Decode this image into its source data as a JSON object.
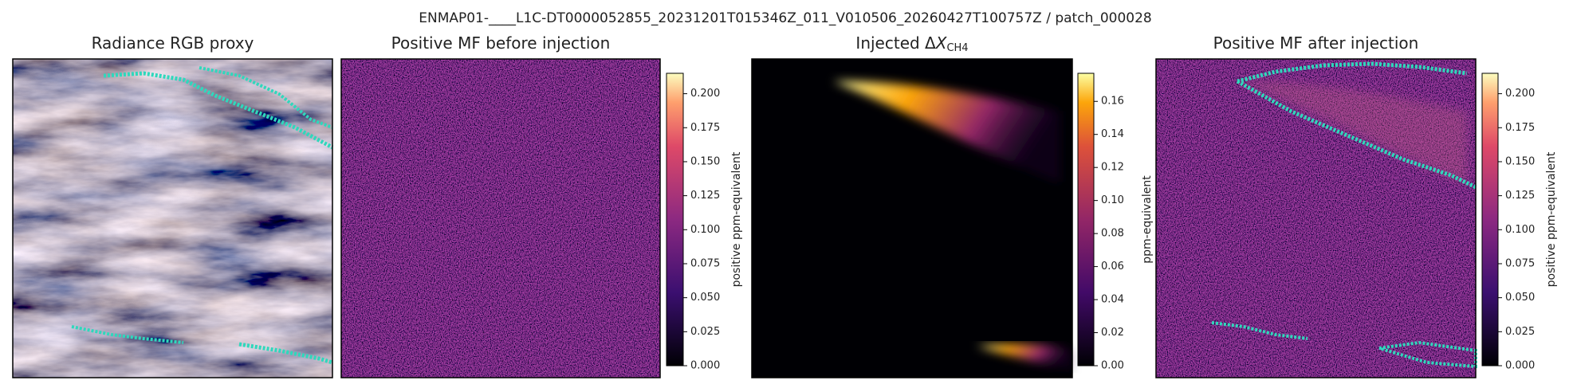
{
  "title": "ENMAP01-____L1C-DT0000052855_20231201T015346Z_011_V010506_20260427T100757Z / patch_000028",
  "chart_data": [
    {
      "type": "image",
      "title": "Radiance RGB proxy"
    },
    {
      "type": "image",
      "title": "Positive MF before injection",
      "colorbar": {
        "label": "positive ppm-equivalent",
        "lim": [
          0,
          0.215
        ],
        "ticks": [
          {
            "value": 0,
            "label": "0.000"
          },
          0.025,
          {
            "value": 0.05,
            "label": "0.050"
          },
          0.075,
          {
            "value": 0.1,
            "label": "0.100"
          },
          0.125,
          {
            "value": 0.15,
            "label": "0.150"
          },
          0.175,
          {
            "value": 0.2,
            "label": "0.200"
          }
        ]
      }
    },
    {
      "type": "image",
      "title": "Injected Δ",
      "title_symbol": "X",
      "title_subscript": "CH4",
      "colorbar": {
        "label": "ppm-equivalent",
        "lim": [
          0,
          0.177
        ],
        "ticks": [
          {
            "value": 0,
            "label": "0.00"
          },
          0.02,
          0.04,
          0.06,
          0.08,
          {
            "value": 0.1,
            "label": "0.10"
          },
          0.12,
          0.14,
          0.16
        ]
      }
    },
    {
      "type": "image",
      "title": "Positive MF after injection",
      "colorbar": {
        "label": "positive ppm-equivalent",
        "lim": [
          0,
          0.215
        ],
        "ticks": [
          {
            "value": 0,
            "label": "0.000"
          },
          0.025,
          {
            "value": 0.05,
            "label": "0.050"
          },
          0.075,
          {
            "value": 0.1,
            "label": "0.100"
          },
          0.125,
          {
            "value": 0.15,
            "label": "0.150"
          },
          0.175,
          {
            "value": 0.2,
            "label": "0.200"
          }
        ]
      }
    }
  ]
}
